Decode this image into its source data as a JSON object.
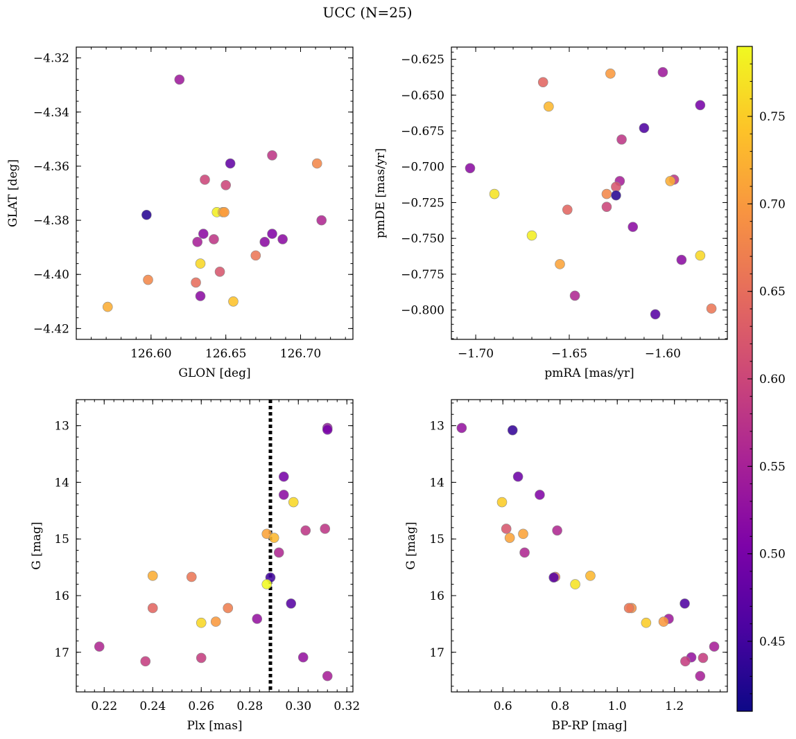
{
  "title": "UCC (N=25)",
  "colorbar": {
    "vmin": 0.41,
    "vmax": 0.79,
    "ticks": [
      "0.45",
      "0.50",
      "0.55",
      "0.60",
      "0.65",
      "0.70",
      "0.75"
    ],
    "tick_values": [
      0.45,
      0.5,
      0.55,
      0.6,
      0.65,
      0.7,
      0.75
    ],
    "colormap": "plasma"
  },
  "chart_data": [
    {
      "type": "scatter",
      "xlabel": "GLON [deg]",
      "ylabel": "GLAT [deg]",
      "xlim": [
        126.55,
        126.735
      ],
      "ylim": [
        -4.424,
        -4.316
      ],
      "xticks": [
        126.6,
        126.65,
        126.7
      ],
      "xtick_labels": [
        "126.60",
        "126.65",
        "126.70"
      ],
      "yticks": [
        -4.42,
        -4.4,
        -4.38,
        -4.36,
        -4.34,
        -4.32
      ],
      "ytick_labels": [
        "−4.42",
        "−4.40",
        "−4.38",
        "−4.36",
        "−4.34",
        "−4.32"
      ],
      "points": [
        {
          "x": 126.619,
          "y": -4.328,
          "c": 0.54
        },
        {
          "x": 126.653,
          "y": -4.359,
          "c": 0.48
        },
        {
          "x": 126.681,
          "y": -4.356,
          "c": 0.58
        },
        {
          "x": 126.711,
          "y": -4.359,
          "c": 0.68
        },
        {
          "x": 126.636,
          "y": -4.365,
          "c": 0.6
        },
        {
          "x": 126.65,
          "y": -4.367,
          "c": 0.6
        },
        {
          "x": 126.597,
          "y": -4.378,
          "c": 0.43
        },
        {
          "x": 126.644,
          "y": -4.377,
          "c": 0.78
        },
        {
          "x": 126.648,
          "y": -4.377,
          "c": 0.73
        },
        {
          "x": 126.649,
          "y": -4.377,
          "c": 0.7
        },
        {
          "x": 126.714,
          "y": -4.38,
          "c": 0.56
        },
        {
          "x": 126.635,
          "y": -4.385,
          "c": 0.52
        },
        {
          "x": 126.642,
          "y": -4.387,
          "c": 0.58
        },
        {
          "x": 126.631,
          "y": -4.388,
          "c": 0.55
        },
        {
          "x": 126.681,
          "y": -4.385,
          "c": 0.51
        },
        {
          "x": 126.676,
          "y": -4.388,
          "c": 0.52
        },
        {
          "x": 126.688,
          "y": -4.387,
          "c": 0.52
        },
        {
          "x": 126.67,
          "y": -4.393,
          "c": 0.66
        },
        {
          "x": 126.633,
          "y": -4.396,
          "c": 0.76
        },
        {
          "x": 126.646,
          "y": -4.399,
          "c": 0.62
        },
        {
          "x": 126.598,
          "y": -4.402,
          "c": 0.68
        },
        {
          "x": 126.63,
          "y": -4.403,
          "c": 0.65
        },
        {
          "x": 126.633,
          "y": -4.408,
          "c": 0.52
        },
        {
          "x": 126.655,
          "y": -4.41,
          "c": 0.74
        },
        {
          "x": 126.571,
          "y": -4.412,
          "c": 0.72
        }
      ]
    },
    {
      "type": "scatter",
      "xlabel": "pmRA [mas/yr]",
      "ylabel": "pmDE [mas/yr]",
      "xlim": [
        -1.713,
        -1.5655
      ],
      "ylim": [
        -0.8205,
        -0.6165
      ],
      "xticks": [
        -1.7,
        -1.65,
        -1.6
      ],
      "xtick_labels": [
        "−1.70",
        "−1.65",
        "−1.60"
      ],
      "yticks": [
        -0.8,
        -0.775,
        -0.75,
        -0.725,
        -0.7,
        -0.675,
        -0.65,
        -0.625
      ],
      "ytick_labels": [
        "−0.800",
        "−0.775",
        "−0.750",
        "−0.725",
        "−0.700",
        "−0.675",
        "−0.650",
        "−0.625"
      ],
      "points": [
        {
          "x": -1.664,
          "y": -0.641,
          "c": 0.64
        },
        {
          "x": -1.628,
          "y": -0.635,
          "c": 0.7
        },
        {
          "x": -1.6,
          "y": -0.634,
          "c": 0.54
        },
        {
          "x": -1.661,
          "y": -0.658,
          "c": 0.73
        },
        {
          "x": -1.58,
          "y": -0.657,
          "c": 0.5
        },
        {
          "x": -1.61,
          "y": -0.673,
          "c": 0.46
        },
        {
          "x": -1.622,
          "y": -0.681,
          "c": 0.58
        },
        {
          "x": -1.703,
          "y": -0.701,
          "c": 0.52
        },
        {
          "x": -1.623,
          "y": -0.71,
          "c": 0.55
        },
        {
          "x": -1.625,
          "y": -0.714,
          "c": 0.62
        },
        {
          "x": -1.594,
          "y": -0.709,
          "c": 0.58
        },
        {
          "x": -1.596,
          "y": -0.71,
          "c": 0.72
        },
        {
          "x": -1.69,
          "y": -0.719,
          "c": 0.77
        },
        {
          "x": -1.63,
          "y": -0.719,
          "c": 0.68
        },
        {
          "x": -1.625,
          "y": -0.72,
          "c": 0.43
        },
        {
          "x": -1.651,
          "y": -0.73,
          "c": 0.64
        },
        {
          "x": -1.63,
          "y": -0.728,
          "c": 0.6
        },
        {
          "x": -1.616,
          "y": -0.742,
          "c": 0.52
        },
        {
          "x": -1.67,
          "y": -0.748,
          "c": 0.78
        },
        {
          "x": -1.59,
          "y": -0.765,
          "c": 0.52
        },
        {
          "x": -1.58,
          "y": -0.762,
          "c": 0.76
        },
        {
          "x": -1.655,
          "y": -0.768,
          "c": 0.71
        },
        {
          "x": -1.647,
          "y": -0.79,
          "c": 0.56
        },
        {
          "x": -1.604,
          "y": -0.803,
          "c": 0.47
        },
        {
          "x": -1.574,
          "y": -0.799,
          "c": 0.66
        }
      ]
    },
    {
      "type": "scatter",
      "xlabel": "Plx [mas]",
      "ylabel": "G [mag]",
      "xlim": [
        0.2085,
        0.3225
      ],
      "ylim": [
        17.7,
        12.54
      ],
      "y_inverted": true,
      "xticks": [
        0.22,
        0.24,
        0.26,
        0.28,
        0.3,
        0.32
      ],
      "xtick_labels": [
        "0.22",
        "0.24",
        "0.26",
        "0.28",
        "0.30",
        "0.32"
      ],
      "yticks": [
        13,
        14,
        15,
        16,
        17
      ],
      "ytick_labels": [
        "13",
        "14",
        "15",
        "16",
        "17"
      ],
      "vline": {
        "x": 0.2885,
        "style": "dotted"
      },
      "points": [
        {
          "x": 0.312,
          "y": 13.04,
          "c": 0.53
        },
        {
          "x": 0.312,
          "y": 13.07,
          "c": 0.5
        },
        {
          "x": 0.294,
          "y": 13.9,
          "c": 0.5
        },
        {
          "x": 0.294,
          "y": 14.22,
          "c": 0.52
        },
        {
          "x": 0.298,
          "y": 14.35,
          "c": 0.76
        },
        {
          "x": 0.311,
          "y": 14.82,
          "c": 0.58
        },
        {
          "x": 0.303,
          "y": 14.85,
          "c": 0.58
        },
        {
          "x": 0.287,
          "y": 14.91,
          "c": 0.71
        },
        {
          "x": 0.29,
          "y": 14.98,
          "c": 0.73
        },
        {
          "x": 0.292,
          "y": 15.24,
          "c": 0.56
        },
        {
          "x": 0.24,
          "y": 15.65,
          "c": 0.72
        },
        {
          "x": 0.256,
          "y": 15.67,
          "c": 0.66
        },
        {
          "x": 0.2885,
          "y": 15.68,
          "c": 0.45
        },
        {
          "x": 0.287,
          "y": 15.8,
          "c": 0.79
        },
        {
          "x": 0.297,
          "y": 16.14,
          "c": 0.47
        },
        {
          "x": 0.24,
          "y": 16.22,
          "c": 0.64
        },
        {
          "x": 0.271,
          "y": 16.22,
          "c": 0.67
        },
        {
          "x": 0.283,
          "y": 16.41,
          "c": 0.53
        },
        {
          "x": 0.266,
          "y": 16.46,
          "c": 0.7
        },
        {
          "x": 0.26,
          "y": 16.48,
          "c": 0.76
        },
        {
          "x": 0.218,
          "y": 16.9,
          "c": 0.56
        },
        {
          "x": 0.26,
          "y": 17.1,
          "c": 0.59
        },
        {
          "x": 0.302,
          "y": 17.09,
          "c": 0.53
        },
        {
          "x": 0.237,
          "y": 17.16,
          "c": 0.59
        },
        {
          "x": 0.312,
          "y": 17.42,
          "c": 0.55
        }
      ]
    },
    {
      "type": "scatter",
      "xlabel": "BP-RP [mag]",
      "ylabel": "G [mag]",
      "xlim": [
        0.42,
        1.385
      ],
      "ylim": [
        17.7,
        12.54
      ],
      "y_inverted": true,
      "xticks": [
        0.6,
        0.8,
        1.0,
        1.2
      ],
      "xtick_labels": [
        "0.6",
        "0.8",
        "1.0",
        "1.2"
      ],
      "yticks": [
        13,
        14,
        15,
        16,
        17
      ],
      "ytick_labels": [
        "13",
        "14",
        "15",
        "16",
        "17"
      ],
      "points": [
        {
          "x": 0.456,
          "y": 13.04,
          "c": 0.53
        },
        {
          "x": 0.634,
          "y": 13.08,
          "c": 0.44
        },
        {
          "x": 0.653,
          "y": 13.9,
          "c": 0.49
        },
        {
          "x": 0.729,
          "y": 14.22,
          "c": 0.51
        },
        {
          "x": 0.597,
          "y": 14.35,
          "c": 0.75
        },
        {
          "x": 0.612,
          "y": 14.82,
          "c": 0.62
        },
        {
          "x": 0.79,
          "y": 14.85,
          "c": 0.56
        },
        {
          "x": 0.671,
          "y": 14.91,
          "c": 0.71
        },
        {
          "x": 0.624,
          "y": 14.98,
          "c": 0.71
        },
        {
          "x": 0.676,
          "y": 15.24,
          "c": 0.56
        },
        {
          "x": 0.783,
          "y": 15.67,
          "c": 0.66
        },
        {
          "x": 0.778,
          "y": 15.68,
          "c": 0.47
        },
        {
          "x": 0.906,
          "y": 15.65,
          "c": 0.73
        },
        {
          "x": 0.853,
          "y": 15.8,
          "c": 0.77
        },
        {
          "x": 1.236,
          "y": 16.14,
          "c": 0.46
        },
        {
          "x": 1.05,
          "y": 16.22,
          "c": 0.69
        },
        {
          "x": 1.041,
          "y": 16.22,
          "c": 0.66
        },
        {
          "x": 1.18,
          "y": 16.41,
          "c": 0.54
        },
        {
          "x": 1.162,
          "y": 16.46,
          "c": 0.7
        },
        {
          "x": 1.101,
          "y": 16.48,
          "c": 0.75
        },
        {
          "x": 1.339,
          "y": 16.9,
          "c": 0.55
        },
        {
          "x": 1.3,
          "y": 17.1,
          "c": 0.59
        },
        {
          "x": 1.259,
          "y": 17.09,
          "c": 0.53
        },
        {
          "x": 1.238,
          "y": 17.16,
          "c": 0.59
        },
        {
          "x": 1.29,
          "y": 17.42,
          "c": 0.55
        }
      ]
    }
  ]
}
